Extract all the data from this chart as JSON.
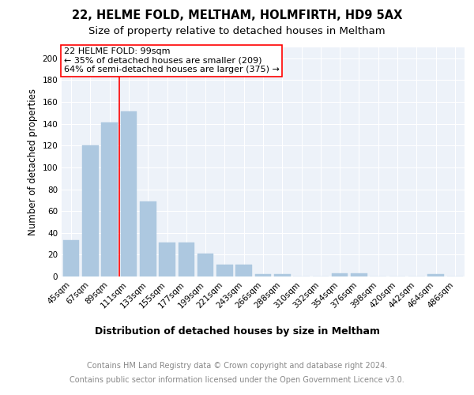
{
  "title": "22, HELME FOLD, MELTHAM, HOLMFIRTH, HD9 5AX",
  "subtitle": "Size of property relative to detached houses in Meltham",
  "xlabel": "Distribution of detached houses by size in Meltham",
  "ylabel": "Number of detached properties",
  "bar_color": "#adc8e0",
  "bar_edgecolor": "#adc8e0",
  "categories": [
    "45sqm",
    "67sqm",
    "89sqm",
    "111sqm",
    "133sqm",
    "155sqm",
    "177sqm",
    "199sqm",
    "221sqm",
    "243sqm",
    "266sqm",
    "288sqm",
    "310sqm",
    "332sqm",
    "354sqm",
    "376sqm",
    "398sqm",
    "420sqm",
    "442sqm",
    "464sqm",
    "486sqm"
  ],
  "values": [
    33,
    120,
    141,
    151,
    69,
    31,
    31,
    21,
    11,
    11,
    2,
    2,
    0,
    0,
    3,
    3,
    0,
    0,
    0,
    2,
    0
  ],
  "ylim": [
    0,
    210
  ],
  "yticks": [
    0,
    20,
    40,
    60,
    80,
    100,
    120,
    140,
    160,
    180,
    200
  ],
  "red_line_x": 2.5,
  "annotation_title": "22 HELME FOLD: 99sqm",
  "annotation_line1": "← 35% of detached houses are smaller (209)",
  "annotation_line2": "64% of semi-detached houses are larger (375) →",
  "footer_line1": "Contains HM Land Registry data © Crown copyright and database right 2024.",
  "footer_line2": "Contains public sector information licensed under the Open Government Licence v3.0.",
  "background_color": "#edf2f9",
  "grid_color": "#ffffff",
  "title_fontsize": 10.5,
  "subtitle_fontsize": 9.5,
  "xlabel_fontsize": 9,
  "ylabel_fontsize": 8.5,
  "tick_fontsize": 7.5,
  "footer_fontsize": 7,
  "annotation_fontsize": 8
}
